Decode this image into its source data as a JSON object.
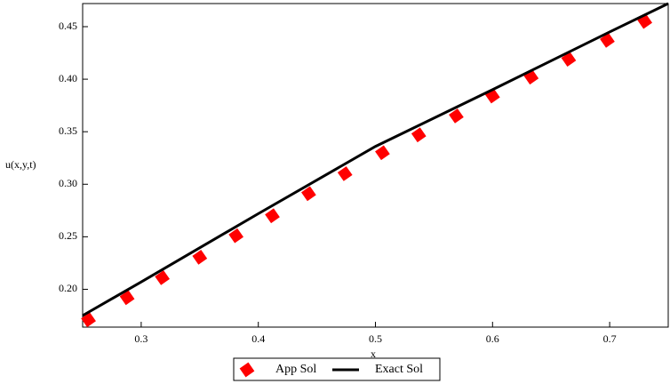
{
  "chart_data": {
    "type": "line",
    "x_label": "x",
    "y_label": "u(x,y,t)",
    "xlim": [
      0.25,
      0.75
    ],
    "ylim": [
      0.164,
      0.472
    ],
    "xticks": [
      0.3,
      0.4,
      0.5,
      0.6,
      0.7
    ],
    "yticks": [
      {
        "value": 0.2,
        "label": "0.20"
      },
      0.25,
      {
        "value": 0.3,
        "label": "0.30"
      },
      0.35,
      {
        "value": 0.4,
        "label": "0.40"
      },
      0.45
    ],
    "legend": "bottom",
    "series": [
      {
        "name": "App Sol",
        "color": "#ff0000",
        "style": "points",
        "x": [
          0.255,
          0.288,
          0.318,
          0.35,
          0.381,
          0.412,
          0.443,
          0.474,
          0.506,
          0.537,
          0.569,
          0.6,
          0.633,
          0.665,
          0.698,
          0.73
        ],
        "values": [
          0.171,
          0.192,
          0.211,
          0.2305,
          0.251,
          0.27,
          0.291,
          0.31,
          0.33,
          0.347,
          0.365,
          0.384,
          0.402,
          0.419,
          0.437,
          0.455
        ]
      },
      {
        "name": "Exact Sol",
        "color": "#000000",
        "style": "line",
        "x": [
          0.25,
          0.3,
          0.4,
          0.5,
          0.6,
          0.7,
          0.75
        ],
        "values": [
          0.175,
          0.207,
          0.272,
          0.336,
          0.39,
          0.445,
          0.472
        ]
      }
    ]
  }
}
